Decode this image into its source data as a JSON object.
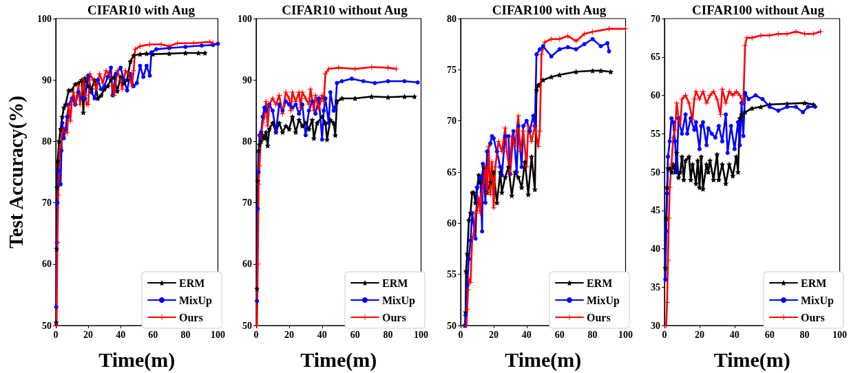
{
  "chart_data": [
    {
      "type": "line",
      "title": "CIFAR10 with Aug",
      "xlabel": "Time(m)",
      "ylabel": "Test Accuracy(%)",
      "xlim": [
        0,
        100
      ],
      "xticks": [
        0,
        20,
        40,
        60,
        80,
        100
      ],
      "ylim": [
        50,
        100
      ],
      "yticks": [
        50,
        60,
        70,
        80,
        90,
        100
      ],
      "legend": "bottom right",
      "grid": false,
      "series": [
        {
          "name": "ERM",
          "color": "#000000",
          "marker": "star",
          "x": [
            0.3,
            0.5,
            0.8,
            1.2,
            2,
            3,
            4,
            5,
            6,
            8,
            10,
            12,
            14,
            16,
            17,
            18,
            20,
            22,
            24,
            26,
            28,
            30,
            32,
            34,
            36,
            38,
            40,
            42,
            44,
            46,
            48,
            52,
            56,
            60,
            70,
            80,
            88,
            92
          ],
          "values": [
            50.5,
            62.5,
            72.5,
            76.8,
            80,
            82,
            84,
            85.5,
            86,
            88.3,
            88.4,
            89.3,
            89.5,
            90,
            84.7,
            90.3,
            89,
            88.5,
            90,
            87,
            87.5,
            88.5,
            89,
            90,
            90.5,
            88.2,
            90.5,
            89.5,
            90,
            93,
            94,
            94.2,
            94.3,
            94.2,
            94.3,
            94.4,
            94.4,
            94.4
          ]
        },
        {
          "name": "MixUp",
          "color": "#0000ff",
          "marker": "circle",
          "x": [
            0.3,
            0.7,
            1,
            1.5,
            3,
            3.5,
            4,
            5,
            6,
            7,
            8,
            10,
            12,
            14,
            16,
            18,
            20,
            22,
            24,
            26,
            28,
            30,
            32,
            34,
            35,
            37,
            40,
            42,
            44,
            46,
            48,
            50,
            52,
            54,
            56,
            58,
            59,
            62,
            70,
            80,
            90,
            97,
            100
          ],
          "values": [
            53,
            63.5,
            70,
            75.2,
            73,
            78.5,
            83,
            80.5,
            82,
            84,
            86,
            87,
            86,
            88,
            87,
            87,
            90.7,
            88,
            87,
            90,
            88.5,
            89,
            90.5,
            92,
            87.5,
            91,
            92,
            90,
            88.3,
            91,
            89,
            89.5,
            92.3,
            90.5,
            92.3,
            90.7,
            94.5,
            95,
            95.2,
            95.4,
            95.6,
            95.7,
            95.9
          ]
        },
        {
          "name": "Ours",
          "color": "#ff0000",
          "marker": "cross",
          "x": [
            0.5,
            1,
            1.5,
            2.5,
            3,
            4,
            5,
            7,
            8,
            9,
            10,
            11,
            12,
            14,
            15,
            17,
            18,
            19,
            20,
            21,
            23,
            25,
            27,
            29,
            31,
            33,
            35,
            36,
            38,
            40,
            41,
            43,
            45,
            47,
            48,
            49,
            52,
            58,
            65,
            70,
            75,
            85,
            95,
            97
          ],
          "values": [
            50,
            63.5,
            71.3,
            78.5,
            79,
            81.5,
            82,
            81.4,
            85.8,
            83.3,
            87,
            88,
            86,
            89,
            86,
            90,
            87.5,
            86,
            86,
            91,
            90,
            88.5,
            91,
            89.5,
            91.5,
            91,
            89,
            87.5,
            91.5,
            90,
            88.5,
            91.5,
            91,
            89,
            91.5,
            95,
            95.5,
            95.8,
            95.8,
            95.5,
            96,
            96,
            96.2,
            96
          ]
        }
      ]
    },
    {
      "type": "line",
      "title": "CIFAR10 without Aug",
      "xlabel": "Time(m)",
      "xlim": [
        0,
        100
      ],
      "xticks": [
        0,
        20,
        40,
        60,
        80,
        100
      ],
      "ylim": [
        50,
        100
      ],
      "yticks": [
        50,
        60,
        70,
        80,
        90,
        100
      ],
      "legend": "bottom right",
      "grid": false,
      "series": [
        {
          "name": "ERM",
          "color": "#000000",
          "marker": "star",
          "x": [
            0.5,
            1,
            1.5,
            2,
            3,
            4,
            5,
            6,
            7,
            8,
            10,
            12,
            14,
            16,
            18,
            20,
            22,
            24,
            26,
            28,
            30,
            32,
            34,
            35,
            37,
            40,
            42,
            43,
            45,
            47,
            48,
            49,
            52,
            60,
            70,
            80,
            90,
            96
          ],
          "values": [
            56,
            73.5,
            78.5,
            79.5,
            80,
            81,
            80.5,
            81.5,
            79.3,
            82,
            83,
            81.5,
            83,
            81.5,
            82.5,
            82,
            84,
            81.5,
            83.5,
            82.5,
            83,
            82,
            83.5,
            80.5,
            83,
            84,
            83,
            80.3,
            83.5,
            83,
            81,
            86.5,
            87,
            87,
            87.3,
            87.2,
            87.3,
            87.3
          ]
        },
        {
          "name": "MixUp",
          "color": "#0000ff",
          "marker": "circle",
          "x": [
            0.5,
            1,
            1.5,
            2,
            3,
            4,
            5,
            6,
            8,
            10,
            12,
            14,
            16,
            18,
            20,
            22,
            24,
            26,
            28,
            30,
            32,
            34,
            36,
            38,
            40,
            41,
            42,
            44,
            45,
            47,
            48,
            49,
            52,
            58,
            65,
            72,
            80,
            90,
            98
          ],
          "values": [
            54,
            69,
            75,
            81,
            81.5,
            84,
            85.5,
            85,
            86,
            85,
            81.5,
            86,
            85,
            86.5,
            86,
            85.5,
            86,
            84.5,
            86,
            81,
            85,
            86.5,
            84.5,
            87,
            80.3,
            85,
            87,
            83,
            88,
            85,
            85.5,
            89.5,
            89.8,
            90.2,
            89.8,
            89.5,
            89.8,
            89.8,
            89.6
          ]
        },
        {
          "name": "Ours",
          "color": "#ff0000",
          "marker": "cross",
          "x": [
            0.5,
            1,
            1.5,
            2,
            3,
            4,
            5,
            6,
            7,
            8,
            10,
            12,
            14,
            16,
            18,
            20,
            21,
            22,
            24,
            26,
            27,
            28,
            30,
            32,
            33,
            35,
            36,
            38,
            40,
            41,
            42,
            44,
            50,
            60,
            70,
            80,
            85
          ],
          "values": [
            50,
            60,
            73,
            76,
            81,
            83,
            84,
            86.5,
            82.5,
            86,
            87,
            86,
            87.5,
            84.5,
            88,
            87,
            85,
            88,
            86.5,
            88,
            85.5,
            88,
            87,
            86,
            88.5,
            85,
            87.5,
            85.3,
            87.5,
            86.5,
            91,
            91.8,
            92,
            91.8,
            92.1,
            92,
            91.8
          ]
        }
      ]
    },
    {
      "type": "line",
      "title": "CIFAR100 with Aug",
      "xlabel": "Time(m)",
      "xlim": [
        0,
        100
      ],
      "xticks": [
        0,
        20,
        40,
        60,
        80,
        100
      ],
      "ylim": [
        50,
        80
      ],
      "yticks": [
        50,
        55,
        60,
        65,
        70,
        75,
        80
      ],
      "legend": "bottom right",
      "grid": false,
      "series": [
        {
          "name": "ERM",
          "color": "#000000",
          "marker": "star",
          "x": [
            2.7,
            3,
            3.3,
            4,
            5,
            6,
            7,
            8,
            9,
            10,
            11,
            12,
            14,
            16,
            18,
            20,
            22,
            24,
            25,
            27,
            29,
            31,
            33,
            35,
            37,
            39,
            41,
            43,
            45,
            46,
            47,
            50,
            55,
            60,
            70,
            80,
            85,
            91
          ],
          "values": [
            50,
            51.3,
            55.3,
            57,
            60.3,
            61,
            63,
            63,
            62,
            63.5,
            64.7,
            64,
            65.5,
            63,
            64,
            65,
            62,
            65,
            63,
            64.5,
            65.5,
            62.7,
            65,
            64.5,
            63.5,
            66,
            62.8,
            66.5,
            63.3,
            73,
            73.5,
            74,
            74.3,
            74.5,
            74.8,
            74.9,
            74.9,
            74.8
          ]
        },
        {
          "name": "MixUp",
          "color": "#0000ff",
          "marker": "circle",
          "x": [
            2.5,
            3,
            4,
            5,
            6,
            7,
            9,
            10,
            12,
            13,
            13.5,
            15,
            16,
            18,
            19,
            20,
            22,
            24,
            25,
            27,
            29,
            30,
            32,
            34,
            35,
            37,
            38,
            40,
            42,
            44,
            45,
            46,
            48,
            50,
            55,
            60,
            65,
            70,
            75,
            80,
            85,
            89,
            90
          ],
          "values": [
            50,
            51,
            54,
            56.5,
            58.3,
            61,
            58.5,
            63.5,
            64.5,
            59.2,
            65.8,
            62,
            67,
            67.8,
            68.5,
            68.3,
            67,
            65.5,
            64.7,
            68.5,
            68.5,
            64.8,
            69,
            65,
            69.5,
            65.5,
            69.5,
            70,
            69,
            70.5,
            69.5,
            76.5,
            77,
            77.3,
            76.3,
            77,
            77.2,
            77,
            77.5,
            78,
            77.3,
            77.6,
            76.8
          ]
        },
        {
          "name": "Ours",
          "color": "#ff0000",
          "marker": "cross",
          "x": [
            3.5,
            4,
            4.5,
            5,
            6,
            7,
            8,
            9,
            10,
            11,
            12,
            13,
            14,
            15,
            16,
            17,
            18,
            19,
            20,
            21,
            23,
            25,
            27,
            28,
            30,
            31,
            33,
            35,
            36,
            38,
            40,
            41,
            43,
            45,
            47,
            48,
            49,
            51,
            55,
            60,
            65,
            70,
            75,
            80,
            90,
            100
          ],
          "values": [
            50,
            51.6,
            53.5,
            54.5,
            54.2,
            58.5,
            59,
            61,
            61.2,
            62.5,
            61,
            63,
            64,
            65.5,
            63,
            67.5,
            62.8,
            66,
            61.5,
            65.5,
            68,
            67,
            69.3,
            67,
            64.8,
            68.5,
            67.5,
            70.5,
            67,
            69,
            65.5,
            69.5,
            68,
            69.5,
            67.5,
            69,
            76.5,
            77.7,
            78,
            78,
            78.3,
            77.8,
            78.5,
            78.7,
            79,
            79
          ]
        }
      ]
    },
    {
      "type": "line",
      "title": "CIFAR100 without Aug",
      "xlabel": "Time(m)",
      "xlim": [
        0,
        100
      ],
      "xticks": [
        0,
        20,
        40,
        60,
        80,
        100
      ],
      "ylim": [
        30,
        70
      ],
      "yticks": [
        30,
        35,
        40,
        45,
        50,
        55,
        60,
        65,
        70
      ],
      "legend": "bottom right",
      "grid": false,
      "series": [
        {
          "name": "ERM",
          "color": "#000000",
          "marker": "star",
          "x": [
            0.5,
            1,
            1.5,
            2,
            3,
            4,
            5,
            6,
            7,
            8,
            9,
            10,
            11,
            12,
            14,
            15,
            16,
            18,
            19,
            20,
            21,
            22,
            24,
            25,
            26,
            28,
            30,
            31,
            33,
            35,
            37,
            39,
            41,
            42,
            43,
            44,
            46,
            50,
            55,
            60,
            70,
            80,
            85
          ],
          "values": [
            37.5,
            44,
            48,
            50.5,
            50.5,
            50,
            51,
            50,
            52.5,
            49.3,
            50,
            52,
            49,
            51.5,
            52,
            49,
            51,
            48.5,
            51.5,
            48,
            52,
            47.8,
            51,
            50,
            51.5,
            49,
            52.3,
            49,
            51,
            48.5,
            51,
            49.5,
            52,
            50,
            57,
            57.5,
            57.8,
            58.3,
            58.5,
            58.8,
            58.9,
            59,
            58.8
          ]
        },
        {
          "name": "MixUp",
          "color": "#0000ff",
          "marker": "circle",
          "x": [
            0.5,
            1,
            1.5,
            2,
            3,
            4,
            5,
            6,
            7,
            8,
            10,
            12,
            13,
            15,
            17,
            18,
            20,
            21,
            22,
            24,
            25,
            27,
            29,
            31,
            33,
            35,
            36,
            38,
            40,
            42,
            43,
            44,
            45,
            46,
            48,
            52,
            56,
            60,
            65,
            70,
            75,
            79,
            82,
            86
          ],
          "values": [
            36,
            42.3,
            47.2,
            52,
            54,
            57,
            56.5,
            54,
            50,
            57,
            55,
            57.5,
            55,
            57,
            55.5,
            56.5,
            53,
            56,
            56.5,
            53.5,
            55.7,
            55,
            54.5,
            56,
            54,
            57.5,
            52.5,
            56,
            53,
            56.5,
            53.5,
            59,
            54.7,
            60.3,
            59.5,
            60,
            59.5,
            58.5,
            58,
            58.5,
            58.5,
            57.8,
            58.5,
            58.5
          ]
        },
        {
          "name": "Ours",
          "color": "#ff0000",
          "marker": "cross",
          "x": [
            1,
            1.5,
            2,
            2.5,
            3,
            4,
            5,
            6,
            7,
            8,
            9,
            10,
            12,
            14,
            16,
            17,
            18,
            20,
            22,
            24,
            26,
            28,
            30,
            32,
            33,
            35,
            37,
            39,
            41,
            43,
            45,
            46,
            47,
            50,
            55,
            60,
            65,
            70,
            75,
            80,
            85,
            89
          ],
          "values": [
            30,
            33,
            38.5,
            44,
            48,
            51,
            54.5,
            55.5,
            59,
            57,
            56.2,
            59.5,
            60,
            59,
            56.8,
            59.5,
            60.5,
            59.5,
            60.5,
            59,
            60,
            60.5,
            59.5,
            57.5,
            60.8,
            59,
            60.5,
            60,
            60.5,
            60,
            59,
            66.5,
            67.5,
            67.5,
            67.8,
            67.8,
            68,
            68,
            68.3,
            68,
            68,
            68.3
          ]
        }
      ]
    }
  ]
}
